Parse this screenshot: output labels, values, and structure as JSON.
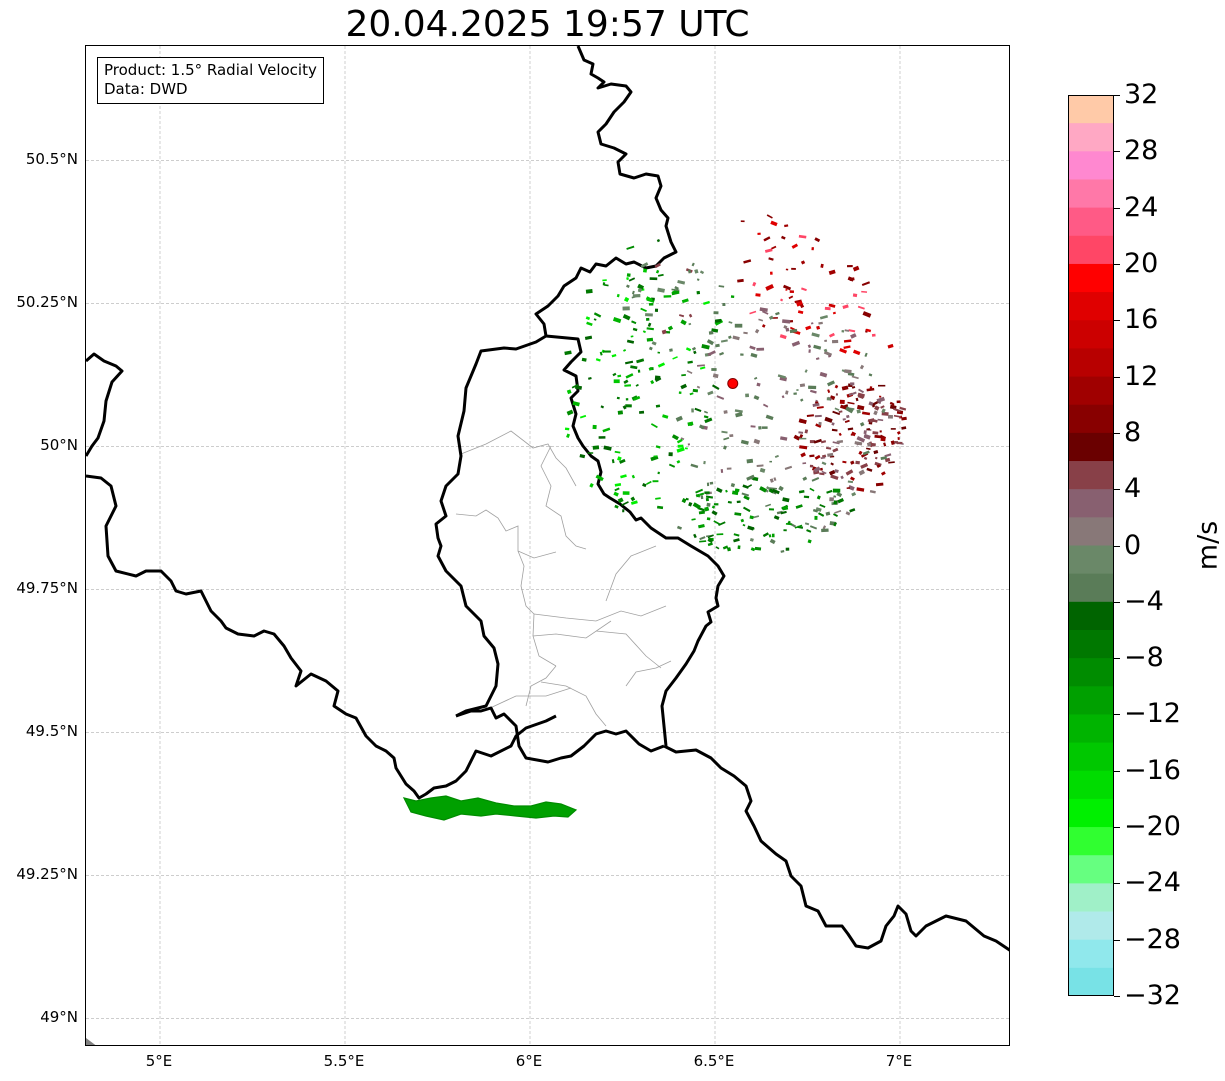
{
  "title": "20.04.2025 19:57 UTC",
  "info_box": {
    "product": "Product: 1.5° Radial Velocity",
    "data": "Data: DWD"
  },
  "map_extent": {
    "lon": [
      4.8,
      7.3
    ],
    "lat": [
      48.95,
      50.7
    ]
  },
  "axes": {
    "y_ticks": [
      {
        "label": "50.5°N",
        "lat": 50.5
      },
      {
        "label": "50.25°N",
        "lat": 50.25
      },
      {
        "label": "50°N",
        "lat": 50.0
      },
      {
        "label": "49.75°N",
        "lat": 49.75
      },
      {
        "label": "49.5°N",
        "lat": 49.5
      },
      {
        "label": "49.25°N",
        "lat": 49.25
      },
      {
        "label": "49°N",
        "lat": 49.0
      }
    ],
    "x_ticks": [
      {
        "label": "5°E",
        "lon": 5.0
      },
      {
        "label": "5.5°E",
        "lon": 5.5
      },
      {
        "label": "6°E",
        "lon": 6.0
      },
      {
        "label": "6.5°E",
        "lon": 6.5
      },
      {
        "label": "7°E",
        "lon": 7.0
      }
    ],
    "grid": true
  },
  "radar_site": {
    "lon": 6.548,
    "lat": 50.11,
    "color": "#ff0000"
  },
  "colorbar": {
    "unit": "m/s",
    "min": -32,
    "max": 32,
    "tick_labels": [
      "32",
      "28",
      "24",
      "20",
      "16",
      "12",
      "8",
      "4",
      "0",
      "−4",
      "−8",
      "−12",
      "−16",
      "−20",
      "−24",
      "−28",
      "−32"
    ],
    "colors_top_to_bottom": [
      "#ffcaa8",
      "#ffa8c4",
      "#ff88d0",
      "#ff78a8",
      "#ff5a86",
      "#ff4666",
      "#ff0000",
      "#e00000",
      "#cc0000",
      "#b80000",
      "#a00000",
      "#880000",
      "#6a0000",
      "#884048",
      "#886070",
      "#887878",
      "#6a8868",
      "#5a7c58",
      "#006400",
      "#007800",
      "#008c00",
      "#00a000",
      "#00b400",
      "#00c800",
      "#00dc00",
      "#00f000",
      "#30ff30",
      "#66ff80",
      "#a0f0c8",
      "#b0eaea",
      "#90e8ec",
      "#78e2e6"
    ]
  },
  "velocity_fields": [
    {
      "name": "outbound-red-cluster",
      "center_lon": 6.75,
      "center_lat": 50.18,
      "color": "#a00000"
    },
    {
      "name": "outbound-dark-red-cluster",
      "center_lon": 6.88,
      "center_lat": 50.02,
      "color": "#880000"
    },
    {
      "name": "near-zero-grey-cluster",
      "center_lon": 6.75,
      "center_lat": 49.92,
      "color": "#886070"
    },
    {
      "name": "inbound-green-cluster",
      "center_lon": 6.4,
      "center_lat": 50.02,
      "color": "#00b400"
    },
    {
      "name": "inbound-dark-green-cluster",
      "center_lon": 6.72,
      "center_lat": 49.86,
      "color": "#007800"
    },
    {
      "name": "southwest-green-band",
      "center_lon": 5.9,
      "center_lat": 49.37,
      "color": "#00a000"
    }
  ]
}
